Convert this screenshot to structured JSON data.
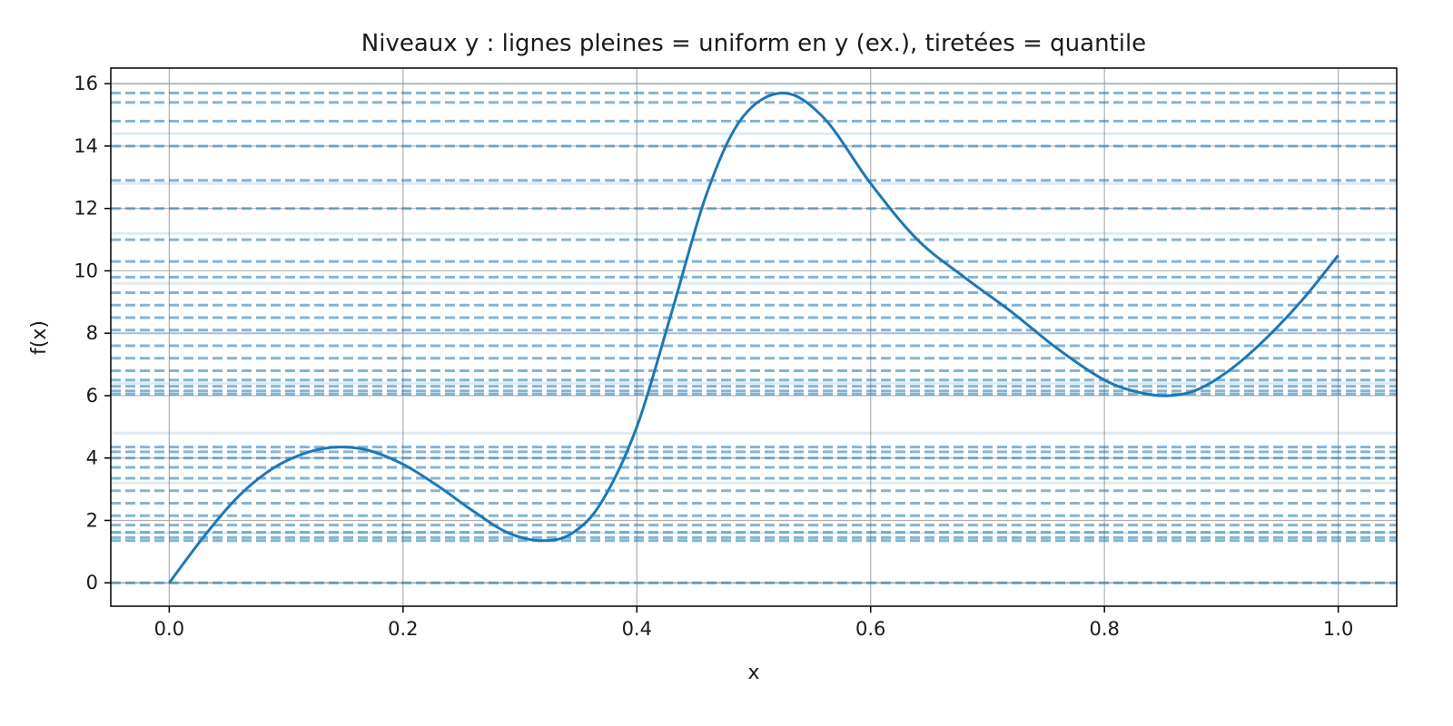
{
  "chart_data": {
    "type": "line",
    "title": "Niveaux y : lignes pleines = uniform en y (ex.), tiretées = quantile",
    "xlabel": "x",
    "ylabel": "f(x)",
    "xlim": [
      -0.05,
      1.05
    ],
    "ylim": [
      -0.75,
      16.5
    ],
    "x_ticks": [
      0.0,
      0.2,
      0.4,
      0.6,
      0.8,
      1.0
    ],
    "x_tick_labels": [
      "0.0",
      "0.2",
      "0.4",
      "0.6",
      "0.8",
      "1.0"
    ],
    "y_ticks": [
      0,
      2,
      4,
      6,
      8,
      10,
      12,
      14,
      16
    ],
    "y_tick_labels": [
      "0",
      "2",
      "4",
      "6",
      "8",
      "10",
      "12",
      "14",
      "16"
    ],
    "grid": true,
    "colors": {
      "series": "#1f77b4",
      "grid": "#b0b0b0",
      "axes": "#000000"
    },
    "series": [
      {
        "style": "solid",
        "x": [
          0.0,
          0.03,
          0.06,
          0.09,
          0.12,
          0.145,
          0.17,
          0.2,
          0.23,
          0.26,
          0.29,
          0.32,
          0.345,
          0.37,
          0.4,
          0.43,
          0.46,
          0.49,
          0.525,
          0.56,
          0.6,
          0.64,
          0.68,
          0.72,
          0.76,
          0.8,
          0.83,
          0.855,
          0.88,
          0.91,
          0.94,
          0.97,
          1.0
        ],
        "y": [
          0.0,
          1.5,
          2.8,
          3.7,
          4.2,
          4.35,
          4.25,
          3.8,
          3.1,
          2.3,
          1.6,
          1.35,
          1.6,
          2.6,
          5.0,
          8.7,
          12.5,
          14.9,
          15.7,
          14.9,
          12.8,
          11.0,
          9.8,
          8.7,
          7.5,
          6.5,
          6.1,
          6.0,
          6.2,
          6.9,
          7.9,
          9.1,
          10.5
        ]
      }
    ],
    "levels_solid": [
      0.0,
      1.6,
      3.2,
      4.8,
      6.4,
      8.0,
      9.6,
      11.2,
      12.8,
      14.4,
      16.0
    ],
    "levels_dashed": [
      0.0,
      1.35,
      1.45,
      1.62,
      1.85,
      2.15,
      2.55,
      2.95,
      3.35,
      3.7,
      4.0,
      4.2,
      4.35,
      6.05,
      6.15,
      6.3,
      6.5,
      6.8,
      7.2,
      7.6,
      8.1,
      8.5,
      8.9,
      9.3,
      9.8,
      10.3,
      11.0,
      12.0,
      12.9,
      14.0,
      14.8,
      15.4,
      15.7
    ]
  }
}
